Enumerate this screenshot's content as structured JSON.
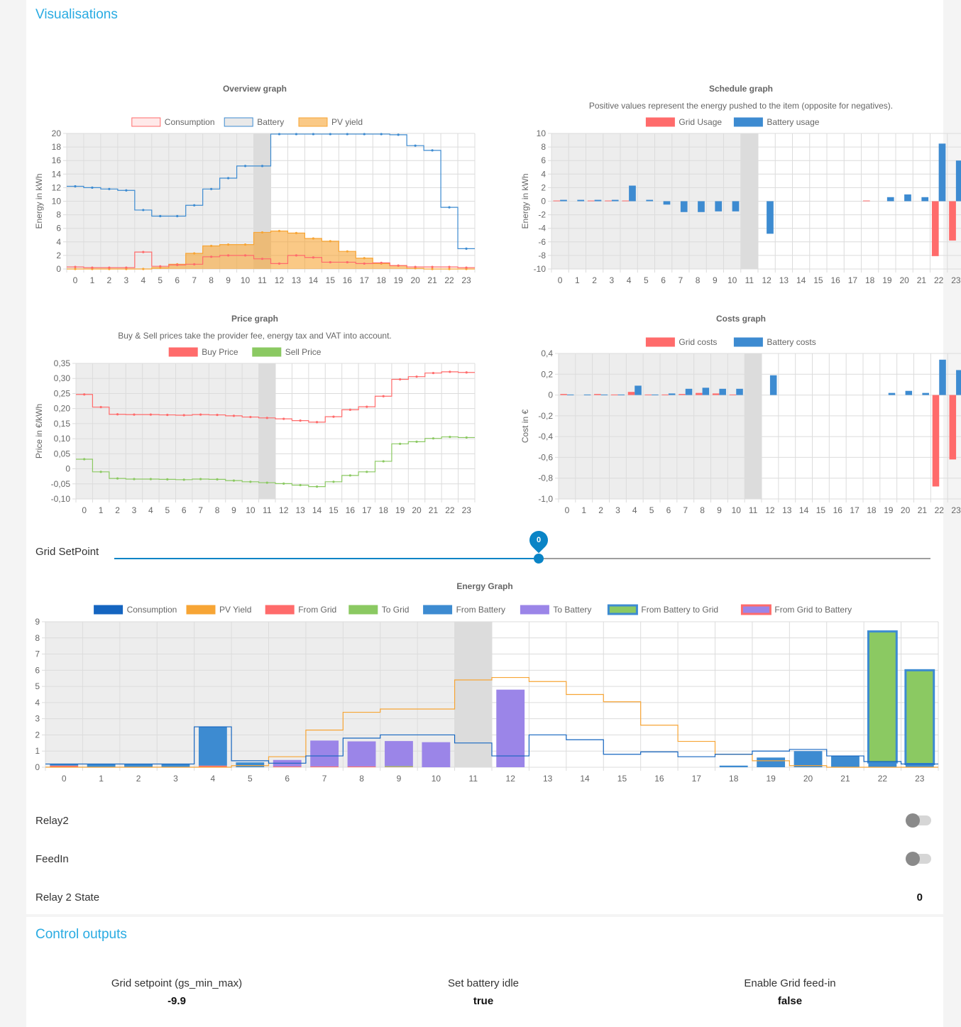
{
  "visualisations": {
    "title": "Visualisations",
    "grid_setpoint_label": "Grid SetPoint",
    "grid_setpoint_value": "0",
    "grid_setpoint_fraction": 0.52,
    "relay2_label": "Relay2",
    "relay2_on": false,
    "feedin_label": "FeedIn",
    "feedin_on": false,
    "relay2_state_label": "Relay 2 State",
    "relay2_state_value": "0"
  },
  "control_outputs": {
    "title": "Control outputs",
    "items": [
      {
        "label": "Grid setpoint (gs_min_max)",
        "value": "-9.9"
      },
      {
        "label": "Set battery idle",
        "value": "true"
      },
      {
        "label": "Enable Grid feed-in",
        "value": "false"
      }
    ]
  },
  "colors": {
    "red": "#ff6b6b",
    "blue": "#3d8bd1",
    "orange": "#f7a535",
    "green": "#8bc962",
    "purple": "#9b85e8",
    "dark_blue": "#1565c0",
    "accent": "#29abe2"
  },
  "chart_data": [
    {
      "id": "overview",
      "type": "line",
      "title": "Overview graph",
      "ylabel": "Energy in kWh",
      "ylim": [
        0,
        20
      ],
      "yticks": [
        "0",
        "2",
        "4",
        "6",
        "8",
        "10",
        "12",
        "14",
        "16",
        "18",
        "20"
      ],
      "categories": [
        "0",
        "1",
        "2",
        "3",
        "4",
        "5",
        "6",
        "7",
        "8",
        "9",
        "10",
        "11",
        "12",
        "13",
        "14",
        "15",
        "16",
        "17",
        "18",
        "19",
        "20",
        "21",
        "22",
        "23"
      ],
      "past_until": 11,
      "series": [
        {
          "name": "Consumption",
          "values": [
            0.3,
            0.2,
            0.2,
            0.2,
            2.5,
            0.4,
            0.6,
            0.7,
            1.8,
            2.0,
            2.0,
            1.5,
            0.8,
            2.0,
            1.7,
            1.0,
            1.0,
            0.8,
            0.9,
            0.5,
            0.3,
            0.3,
            0.3,
            0.2
          ]
        },
        {
          "name": "Battery",
          "values": [
            12.2,
            12.0,
            11.8,
            11.6,
            8.7,
            7.8,
            7.8,
            9.4,
            11.8,
            13.4,
            15.2,
            15.2,
            19.9,
            19.9,
            19.9,
            19.9,
            19.9,
            19.9,
            19.9,
            19.8,
            18.2,
            17.5,
            9.1,
            3.0
          ]
        },
        {
          "name": "PV yield",
          "values": [
            0,
            0,
            0,
            0,
            0,
            0.2,
            0.7,
            2.3,
            3.4,
            3.6,
            3.6,
            5.4,
            5.6,
            5.3,
            4.5,
            4.1,
            2.6,
            1.6,
            0.8,
            0.5,
            0.1,
            0,
            0,
            0
          ]
        }
      ]
    },
    {
      "id": "schedule",
      "type": "bar",
      "title": "Schedule graph",
      "subtitle": "Positive values represent the energy pushed to the item (opposite for negatives).",
      "ylabel": "Energy in kWh",
      "ylim": [
        -10,
        10
      ],
      "yticks": [
        "-10",
        "-8",
        "-6",
        "-4",
        "-2",
        "0",
        "2",
        "4",
        "6",
        "8",
        "10"
      ],
      "categories": [
        "0",
        "1",
        "2",
        "3",
        "4",
        "5",
        "6",
        "7",
        "8",
        "9",
        "10",
        "11",
        "12",
        "13",
        "14",
        "15",
        "16",
        "17",
        "18",
        "19",
        "20",
        "21",
        "22",
        "23"
      ],
      "past_until": 11,
      "series": [
        {
          "name": "Grid Usage",
          "values": [
            0.1,
            0,
            0.1,
            0.1,
            0.1,
            0,
            0,
            0,
            0,
            0,
            0,
            0,
            0,
            0,
            0,
            0,
            0,
            0,
            0.1,
            0,
            0,
            0,
            -8.1,
            -5.8
          ]
        },
        {
          "name": "Battery usage",
          "values": [
            0.2,
            0.2,
            0.2,
            0.2,
            2.3,
            0.2,
            -0.5,
            -1.6,
            -1.6,
            -1.5,
            -1.5,
            0,
            -4.8,
            0,
            0,
            0,
            0,
            0,
            0,
            0.6,
            1.0,
            0.6,
            8.5,
            6.0
          ]
        }
      ]
    },
    {
      "id": "price",
      "type": "line",
      "title": "Price graph",
      "subtitle": "Buy & Sell prices take the provider fee, energy tax and VAT into account.",
      "ylabel": "Price in €/kWh",
      "ylim": [
        -0.1,
        0.35
      ],
      "yticks": [
        "-0,10",
        "-0,05",
        "0",
        "0,05",
        "0,10",
        "0,15",
        "0,20",
        "0,25",
        "0,30",
        "0,35"
      ],
      "categories": [
        "0",
        "1",
        "2",
        "3",
        "4",
        "5",
        "6",
        "7",
        "8",
        "9",
        "10",
        "11",
        "12",
        "13",
        "14",
        "15",
        "16",
        "17",
        "18",
        "19",
        "20",
        "21",
        "22",
        "23"
      ],
      "past_until": 11,
      "series": [
        {
          "name": "Buy Price",
          "values": [
            0.247,
            0.205,
            0.181,
            0.18,
            0.18,
            0.179,
            0.178,
            0.18,
            0.179,
            0.176,
            0.172,
            0.169,
            0.166,
            0.16,
            0.155,
            0.173,
            0.196,
            0.206,
            0.241,
            0.297,
            0.306,
            0.318,
            0.322,
            0.32
          ]
        },
        {
          "name": "Sell Price",
          "values": [
            0.032,
            -0.01,
            -0.032,
            -0.034,
            -0.034,
            -0.035,
            -0.036,
            -0.034,
            -0.035,
            -0.039,
            -0.043,
            -0.046,
            -0.049,
            -0.054,
            -0.059,
            -0.043,
            -0.022,
            -0.01,
            0.025,
            0.083,
            0.09,
            0.101,
            0.106,
            0.104
          ]
        }
      ]
    },
    {
      "id": "costs",
      "type": "bar",
      "title": "Costs graph",
      "ylabel": "Cost in €",
      "ylim": [
        -1.0,
        0.4
      ],
      "yticks": [
        "-1,0",
        "-0,8",
        "-0,6",
        "-0,4",
        "-0,2",
        "0",
        "0,2",
        "0,4"
      ],
      "categories": [
        "0",
        "1",
        "2",
        "3",
        "4",
        "5",
        "6",
        "7",
        "8",
        "9",
        "10",
        "11",
        "12",
        "13",
        "14",
        "15",
        "16",
        "17",
        "18",
        "19",
        "20",
        "21",
        "22",
        "23"
      ],
      "past_until": 11,
      "series": [
        {
          "name": "Grid costs",
          "values": [
            0.01,
            0,
            0.01,
            0.005,
            0.03,
            0.005,
            0.005,
            0.01,
            0.02,
            0.015,
            0.005,
            0,
            0,
            0,
            0,
            0,
            0,
            0,
            0,
            0,
            0,
            0,
            -0.88,
            -0.62
          ]
        },
        {
          "name": "Battery costs",
          "values": [
            0.005,
            0.005,
            0.005,
            0.005,
            0.09,
            0.005,
            0.015,
            0.06,
            0.07,
            0.06,
            0.06,
            0,
            0.19,
            0,
            0,
            0,
            0,
            0,
            0,
            0.02,
            0.04,
            0.02,
            0.34,
            0.24
          ]
        }
      ]
    },
    {
      "id": "energy",
      "type": "bar",
      "title": "Energy Graph",
      "ylim": [
        0,
        9
      ],
      "yticks": [
        "0",
        "1",
        "2",
        "3",
        "4",
        "5",
        "6",
        "7",
        "8",
        "9"
      ],
      "categories": [
        "0",
        "1",
        "2",
        "3",
        "4",
        "5",
        "6",
        "7",
        "8",
        "9",
        "10",
        "11",
        "12",
        "13",
        "14",
        "15",
        "16",
        "17",
        "18",
        "19",
        "20",
        "21",
        "22",
        "23"
      ],
      "past_until": 11,
      "series": [
        {
          "name": "Consumption",
          "values": [
            0.2,
            0.2,
            0.2,
            0.2,
            2.5,
            0.4,
            0.25,
            0.7,
            1.8,
            2.0,
            2.0,
            1.5,
            0.7,
            2.0,
            1.7,
            0.8,
            0.95,
            0.65,
            0.8,
            1.0,
            1.1,
            0.7,
            0.35,
            0.2
          ]
        },
        {
          "name": "PV Yield",
          "values": [
            0,
            0,
            0,
            0,
            0,
            0.1,
            0.65,
            2.3,
            3.4,
            3.6,
            3.6,
            5.4,
            5.55,
            5.3,
            4.5,
            4.05,
            2.6,
            1.6,
            0.8,
            0.4,
            0.1,
            0,
            0,
            0
          ]
        },
        {
          "name": "From Grid",
          "values": [
            0.1,
            0,
            0,
            0,
            0.1,
            0,
            0.05,
            0.05,
            0.05,
            0.02,
            0,
            0,
            0,
            0,
            0,
            0,
            0,
            0,
            0,
            0,
            0,
            0,
            0,
            0
          ]
        },
        {
          "name": "To Grid",
          "values": [
            0,
            0,
            0,
            0,
            0,
            0,
            0,
            0,
            0,
            0.05,
            0,
            0,
            0,
            0,
            0,
            0,
            0,
            0,
            0,
            0,
            0,
            0,
            0,
            0
          ]
        },
        {
          "name": "From Battery",
          "values": [
            0.1,
            0.2,
            0.2,
            0.2,
            2.4,
            0.3,
            0,
            0,
            0,
            0,
            0,
            0,
            0,
            0,
            0,
            0,
            0,
            0,
            0.1,
            0.6,
            1.0,
            0.7,
            0.3,
            0.2
          ]
        },
        {
          "name": "To Battery",
          "values": [
            0,
            0,
            0,
            0,
            0,
            0,
            0.4,
            1.6,
            1.55,
            1.55,
            1.55,
            0,
            4.8,
            0,
            0,
            0,
            0,
            0,
            0,
            0,
            0,
            0,
            0,
            0
          ]
        },
        {
          "name": "From Battery to Grid",
          "values": [
            0,
            0,
            0,
            0,
            0,
            0,
            0,
            0,
            0,
            0,
            0,
            0,
            0,
            0,
            0,
            0,
            0,
            0,
            0,
            0,
            0,
            0,
            8.1,
            5.8
          ]
        },
        {
          "name": "From Grid to Battery",
          "values": [
            0,
            0,
            0,
            0,
            0,
            0,
            0,
            0,
            0,
            0,
            0,
            0,
            0,
            0,
            0,
            0,
            0,
            0,
            0,
            0,
            0,
            0,
            0,
            0
          ]
        }
      ]
    }
  ]
}
